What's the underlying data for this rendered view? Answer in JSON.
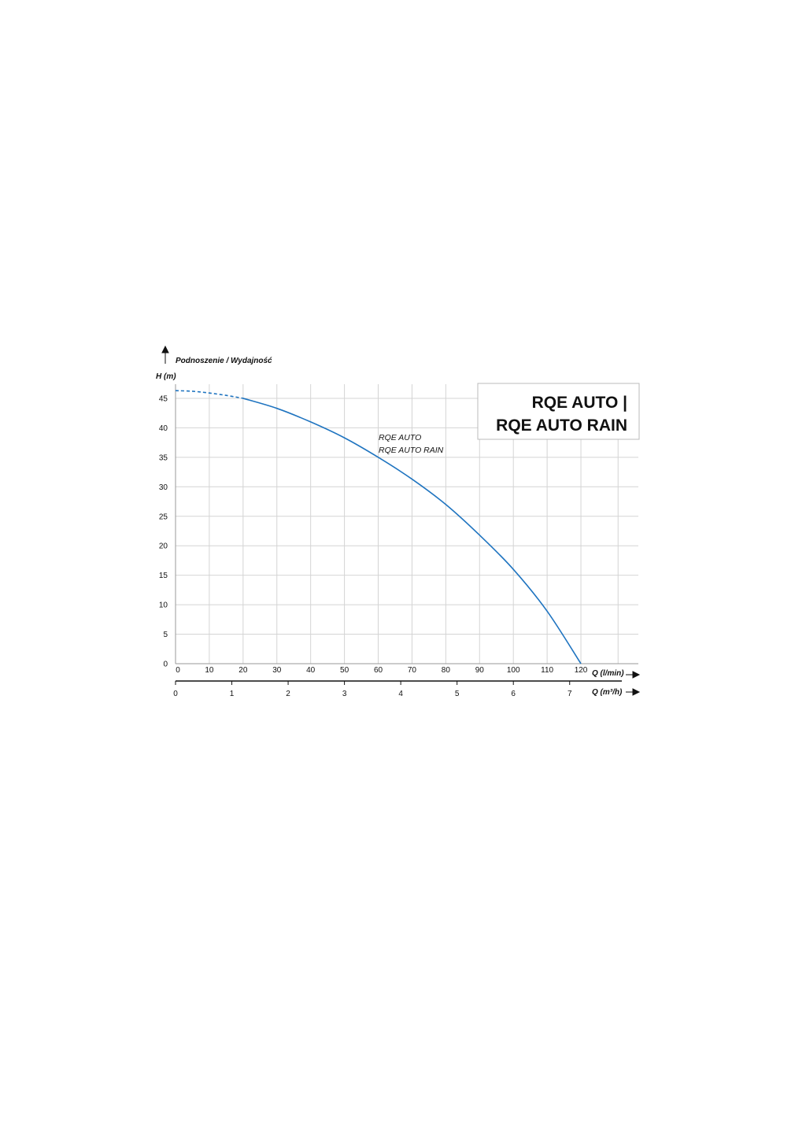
{
  "chart_data": {
    "type": "line",
    "title": "RQE AUTO |",
    "title_line2": "RQE AUTO RAIN",
    "axis_caption": "Podnoszenie / Wydajność",
    "ylabel": "H (m)",
    "xlabel": "Q (l/min)",
    "x2label": "Q (m³/h)",
    "xlim": [
      0,
      137
    ],
    "ylim": [
      0,
      47.4
    ],
    "grid": true,
    "x_ticks": [
      0,
      10,
      20,
      30,
      40,
      50,
      60,
      70,
      80,
      90,
      100,
      110,
      120
    ],
    "extra_gridline_x": 131,
    "y_ticks": [
      0,
      5,
      10,
      15,
      20,
      25,
      30,
      35,
      40,
      45
    ],
    "x2_ticks": [
      0,
      1,
      2,
      3,
      4,
      5,
      6,
      7
    ],
    "x2_per_x": 16.667,
    "series": [
      {
        "name": "RQE AUTO",
        "name2": "RQE AUTO RAIN",
        "color": "#1f74c0",
        "x": [
          0,
          5,
          10,
          15,
          20,
          30,
          40,
          50,
          60,
          70,
          80,
          90,
          100,
          110,
          120
        ],
        "y": [
          46.3,
          46.2,
          45.9,
          45.5,
          45.0,
          43.3,
          41.0,
          38.3,
          35.0,
          31.3,
          27.0,
          21.8,
          16.0,
          8.9,
          0
        ],
        "dashed_until_x": 18
      }
    ]
  }
}
